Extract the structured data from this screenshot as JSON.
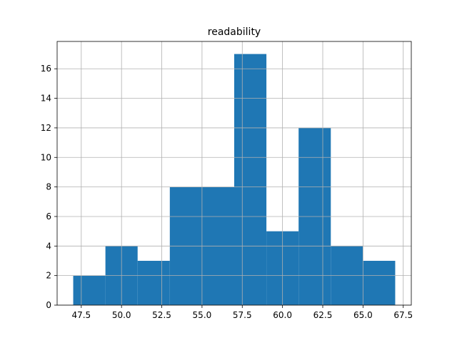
{
  "chart_data": {
    "type": "bar",
    "title": "readability",
    "xlabel": "",
    "ylabel": "",
    "bin_edges": [
      47.0,
      49.0,
      51.0,
      53.0,
      55.0,
      57.0,
      59.0,
      61.0,
      63.0,
      65.0,
      67.0
    ],
    "values": [
      2,
      4,
      3,
      8,
      8,
      17,
      5,
      12,
      4,
      3
    ],
    "xlim": [
      46.0,
      68.0
    ],
    "ylim": [
      0,
      17.85
    ],
    "xticks": [
      47.5,
      50.0,
      52.5,
      55.0,
      57.5,
      60.0,
      62.5,
      65.0,
      67.5
    ],
    "xtick_labels": [
      "47.5",
      "50.0",
      "52.5",
      "55.0",
      "57.5",
      "60.0",
      "62.5",
      "65.0",
      "67.5"
    ],
    "yticks": [
      0,
      2,
      4,
      6,
      8,
      10,
      12,
      14,
      16
    ],
    "ytick_labels": [
      "0",
      "2",
      "4",
      "6",
      "8",
      "10",
      "12",
      "14",
      "16"
    ],
    "grid": true,
    "bar_color": "#1f77b4",
    "grid_color": "#b0b0b0"
  }
}
